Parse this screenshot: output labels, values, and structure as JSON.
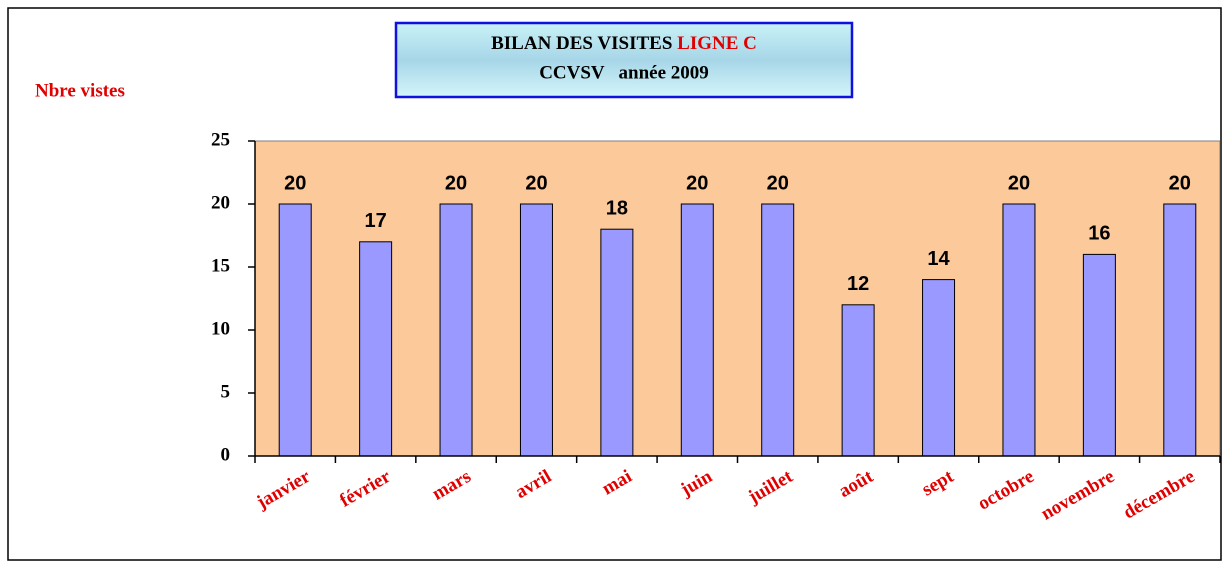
{
  "chart_data": {
    "type": "bar",
    "title": {
      "text": "BILAN DES VISITES",
      "highlight": "LIGNE C"
    },
    "subtitle": "CCVSV   année 2009",
    "y_label": "Nbre vistes",
    "categories": [
      "janvier",
      "février",
      "mars",
      "avril",
      "mai",
      "juin",
      "juillet",
      "août",
      "sept",
      "octobre",
      "novembre",
      "décembre"
    ],
    "values": [
      20,
      17,
      20,
      20,
      18,
      20,
      20,
      12,
      14,
      20,
      16,
      20
    ],
    "color": "#9999ff",
    "plot_background": "#fcc99b",
    "ylim": [
      0,
      25
    ],
    "yticks": [
      0,
      5,
      10,
      15,
      20,
      25
    ],
    "grid": false
  }
}
